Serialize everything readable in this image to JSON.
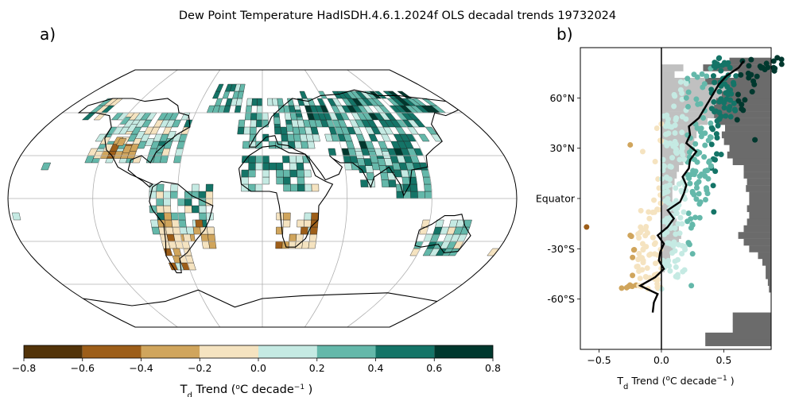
{
  "chart_data": [
    {
      "type": "heatmap",
      "panel": "a)",
      "title_parts": [
        "Dew Point Temperature HadISDH.4.6.1.2024f OLS decadal trends 19732024"
      ],
      "colorbar": {
        "label_main": "T",
        "label_sub": "d",
        "label_mid": " Trend (",
        "label_sup1": "o",
        "label_unit": "C decade",
        "label_sup2": "−1",
        "label_end": " )",
        "bounds": [
          -0.8,
          -0.6,
          -0.4,
          -0.2,
          0.0,
          0.2,
          0.4,
          0.6,
          0.8
        ],
        "tick_labels": [
          "−0.8",
          "−0.6",
          "−0.4",
          "−0.2",
          "0.0",
          "0.2",
          "0.4",
          "0.6",
          "0.8"
        ],
        "colors": [
          "#523309",
          "#9d5e19",
          "#d0a55c",
          "#f5e3c0",
          "#c5eae3",
          "#64b8aa",
          "#147467",
          "#00382e"
        ]
      },
      "grid_cells_sample": [
        {
          "lon": -120,
          "lat": 52,
          "trend": 0.3
        },
        {
          "lon": -110,
          "lat": 47,
          "trend": 0.1
        },
        {
          "lon": -100,
          "lat": 42,
          "trend": 0.05
        },
        {
          "lon": -112,
          "lat": 37,
          "trend": -0.3
        },
        {
          "lon": -105,
          "lat": 32,
          "trend": -0.4
        },
        {
          "lon": -90,
          "lat": 37,
          "trend": 0.1
        },
        {
          "lon": -80,
          "lat": 32,
          "trend": 0.3
        },
        {
          "lon": -75,
          "lat": 42,
          "trend": 0.1
        },
        {
          "lon": -60,
          "lat": -5,
          "trend": 0.3
        },
        {
          "lon": -45,
          "lat": -10,
          "trend": 0.1
        },
        {
          "lon": -48,
          "lat": -20,
          "trend": -0.5
        },
        {
          "lon": -58,
          "lat": -30,
          "trend": -0.1
        },
        {
          "lon": -68,
          "lat": -40,
          "trend": -0.3
        },
        {
          "lon": -70,
          "lat": -15,
          "trend": -0.3
        },
        {
          "lon": 10,
          "lat": 52,
          "trend": 0.3
        },
        {
          "lon": 20,
          "lat": 47,
          "trend": 0.3
        },
        {
          "lon": 30,
          "lat": 57,
          "trend": 0.5
        },
        {
          "lon": 40,
          "lat": 50,
          "trend": 0.3
        },
        {
          "lon": 60,
          "lat": 55,
          "trend": 0.1
        },
        {
          "lon": 80,
          "lat": 50,
          "trend": 0.3
        },
        {
          "lon": 100,
          "lat": 55,
          "trend": 0.5
        },
        {
          "lon": 120,
          "lat": 45,
          "trend": 0.1
        },
        {
          "lon": 110,
          "lat": 30,
          "trend": 0.3
        },
        {
          "lon": 80,
          "lat": 25,
          "trend": 0.3
        },
        {
          "lon": 50,
          "lat": 30,
          "trend": 0.5
        },
        {
          "lon": 30,
          "lat": 25,
          "trend": 0.3
        },
        {
          "lon": 10,
          "lat": 15,
          "trend": 0.3
        },
        {
          "lon": 35,
          "lat": 5,
          "trend": -0.1
        },
        {
          "lon": 28,
          "lat": -25,
          "trend": -0.5
        },
        {
          "lon": 20,
          "lat": -30,
          "trend": -0.3
        },
        {
          "lon": 120,
          "lat": -30,
          "trend": 0.1
        },
        {
          "lon": 140,
          "lat": -25,
          "trend": 0.3
        },
        {
          "lon": 145,
          "lat": -35,
          "trend": -0.1
        },
        {
          "lon": 175,
          "lat": -40,
          "trend": -0.1
        },
        {
          "lon": -160,
          "lat": 20,
          "trend": 0.3
        },
        {
          "lon": -178,
          "lat": -15,
          "trend": 0.1
        }
      ]
    },
    {
      "type": "scatter",
      "panel": "b)",
      "ytick_labels": [
        "60",
        "N",
        "30",
        "N",
        "Equator",
        "-30",
        "S",
        "-60",
        "S"
      ],
      "ytick_display": [
        "60°N",
        "30°N",
        "Equator",
        "-30°S",
        "-60°S"
      ],
      "ytick_values": [
        60,
        30,
        0,
        -30,
        -60
      ],
      "ylim": [
        -90,
        90
      ],
      "xlim": [
        -0.65,
        0.88
      ],
      "xticks": [
        -0.5,
        0.0,
        0.5
      ],
      "xtick_labels": [
        "−0.5",
        "0.0",
        "0.5"
      ],
      "xlabel_main": "T",
      "xlabel_sub": "d",
      "xlabel_mid": " Trend (",
      "xlabel_sup1": "o",
      "xlabel_unit": "C decade",
      "xlabel_sup2": "−1",
      "xlabel_end": " )",
      "land_fraction_dark": [
        {
          "lat": 82,
          "frac": 0.38
        },
        {
          "lat": 78,
          "frac": 0.62
        },
        {
          "lat": 74,
          "frac": 0.3
        },
        {
          "lat": 70,
          "frac": 0.72
        },
        {
          "lat": 66,
          "frac": 0.82
        },
        {
          "lat": 62,
          "frac": 0.85
        },
        {
          "lat": 58,
          "frac": 0.6
        },
        {
          "lat": 54,
          "frac": 0.55
        },
        {
          "lat": 50,
          "frac": 0.55
        },
        {
          "lat": 46,
          "frac": 0.48
        },
        {
          "lat": 42,
          "frac": 0.42
        },
        {
          "lat": 38,
          "frac": 0.45
        },
        {
          "lat": 34,
          "frac": 0.43
        },
        {
          "lat": 30,
          "frac": 0.38
        },
        {
          "lat": 26,
          "frac": 0.4
        },
        {
          "lat": 22,
          "frac": 0.35
        },
        {
          "lat": 18,
          "frac": 0.25
        },
        {
          "lat": 14,
          "frac": 0.25
        },
        {
          "lat": 10,
          "frac": 0.22
        },
        {
          "lat": 6,
          "frac": 0.23
        },
        {
          "lat": 2,
          "frac": 0.2
        },
        {
          "lat": -2,
          "frac": 0.2
        },
        {
          "lat": -6,
          "frac": 0.22
        },
        {
          "lat": -10,
          "frac": 0.2
        },
        {
          "lat": -14,
          "frac": 0.22
        },
        {
          "lat": -18,
          "frac": 0.25
        },
        {
          "lat": -22,
          "frac": 0.3
        },
        {
          "lat": -26,
          "frac": 0.25
        },
        {
          "lat": -30,
          "frac": 0.2
        },
        {
          "lat": -34,
          "frac": 0.12
        },
        {
          "lat": -38,
          "frac": 0.08
        },
        {
          "lat": -42,
          "frac": 0.05
        },
        {
          "lat": -46,
          "frac": 0.05
        },
        {
          "lat": -50,
          "frac": 0.03
        },
        {
          "lat": -54,
          "frac": 0.02
        },
        {
          "lat": -62,
          "frac": 0.0
        },
        {
          "lat": -66,
          "frac": 0.0
        },
        {
          "lat": -70,
          "frac": 0.35
        },
        {
          "lat": -74,
          "frac": 0.35
        },
        {
          "lat": -78,
          "frac": 0.35
        },
        {
          "lat": -82,
          "frac": 0.6
        },
        {
          "lat": -86,
          "frac": 0.6
        }
      ],
      "coverage_fraction_light": [
        {
          "lat": 78,
          "frac": 0.2
        },
        {
          "lat": 74,
          "frac": 0.12
        },
        {
          "lat": 70,
          "frac": 0.4
        },
        {
          "lat": 66,
          "frac": 0.6
        },
        {
          "lat": 62,
          "frac": 0.55
        },
        {
          "lat": 58,
          "frac": 0.5
        },
        {
          "lat": 54,
          "frac": 0.48
        },
        {
          "lat": 50,
          "frac": 0.48
        },
        {
          "lat": 46,
          "frac": 0.42
        },
        {
          "lat": 42,
          "frac": 0.35
        },
        {
          "lat": 38,
          "frac": 0.32
        },
        {
          "lat": 34,
          "frac": 0.3
        },
        {
          "lat": 30,
          "frac": 0.28
        },
        {
          "lat": 26,
          "frac": 0.24
        },
        {
          "lat": 22,
          "frac": 0.2
        },
        {
          "lat": 18,
          "frac": 0.16
        },
        {
          "lat": 14,
          "frac": 0.14
        },
        {
          "lat": 10,
          "frac": 0.12
        },
        {
          "lat": 6,
          "frac": 0.1
        },
        {
          "lat": 2,
          "frac": 0.1
        },
        {
          "lat": -2,
          "frac": 0.1
        },
        {
          "lat": -6,
          "frac": 0.12
        },
        {
          "lat": -10,
          "frac": 0.12
        },
        {
          "lat": -14,
          "frac": 0.14
        },
        {
          "lat": -18,
          "frac": 0.16
        },
        {
          "lat": -22,
          "frac": 0.18
        },
        {
          "lat": -26,
          "frac": 0.16
        },
        {
          "lat": -30,
          "frac": 0.12
        },
        {
          "lat": -34,
          "frac": 0.08
        },
        {
          "lat": -38,
          "frac": 0.05
        },
        {
          "lat": -42,
          "frac": 0.03
        }
      ],
      "zonal_mean_line": [
        {
          "lat": -68,
          "trend": -0.07
        },
        {
          "lat": -62,
          "trend": -0.06
        },
        {
          "lat": -57,
          "trend": -0.03
        },
        {
          "lat": -52,
          "trend": -0.17
        },
        {
          "lat": -47,
          "trend": -0.05
        },
        {
          "lat": -42,
          "trend": 0.02
        },
        {
          "lat": -37,
          "trend": -0.02
        },
        {
          "lat": -32,
          "trend": -0.01
        },
        {
          "lat": -27,
          "trend": 0.02
        },
        {
          "lat": -22,
          "trend": -0.03
        },
        {
          "lat": -17,
          "trend": 0.05
        },
        {
          "lat": -12,
          "trend": 0.1
        },
        {
          "lat": -7,
          "trend": 0.05
        },
        {
          "lat": -2,
          "trend": 0.15
        },
        {
          "lat": 3,
          "trend": 0.18
        },
        {
          "lat": 8,
          "trend": 0.2
        },
        {
          "lat": 13,
          "trend": 0.17
        },
        {
          "lat": 18,
          "trend": 0.22
        },
        {
          "lat": 23,
          "trend": 0.23
        },
        {
          "lat": 28,
          "trend": 0.28
        },
        {
          "lat": 33,
          "trend": 0.2
        },
        {
          "lat": 38,
          "trend": 0.23
        },
        {
          "lat": 43,
          "trend": 0.22
        },
        {
          "lat": 48,
          "trend": 0.3
        },
        {
          "lat": 53,
          "trend": 0.34
        },
        {
          "lat": 58,
          "trend": 0.38
        },
        {
          "lat": 63,
          "trend": 0.42
        },
        {
          "lat": 68,
          "trend": 0.46
        },
        {
          "lat": 73,
          "trend": 0.52
        },
        {
          "lat": 78,
          "trend": 0.62
        },
        {
          "lat": 82,
          "trend": 0.66
        }
      ],
      "points_sample": [
        {
          "lat": 82,
          "trend": 0.65
        },
        {
          "lat": 78,
          "trend": 0.8
        },
        {
          "lat": 78,
          "trend": 0.55
        },
        {
          "lat": 72,
          "trend": 0.7
        },
        {
          "lat": 68,
          "trend": 0.58
        },
        {
          "lat": 65,
          "trend": 0.4
        },
        {
          "lat": 60,
          "trend": 0.2
        },
        {
          "lat": 55,
          "trend": 0.1
        },
        {
          "lat": 45,
          "trend": 0.05
        },
        {
          "lat": 35,
          "trend": 0.75
        },
        {
          "lat": 32,
          "trend": -0.25
        },
        {
          "lat": 28,
          "trend": -0.15
        },
        {
          "lat": 22,
          "trend": -0.05
        },
        {
          "lat": 10,
          "trend": 0.3
        },
        {
          "lat": -8,
          "trend": 0.42
        },
        {
          "lat": -17,
          "trend": -0.6
        },
        {
          "lat": -22,
          "trend": -0.25
        },
        {
          "lat": -27,
          "trend": -0.15
        },
        {
          "lat": -33,
          "trend": 0.25
        },
        {
          "lat": -38,
          "trend": 0.05
        },
        {
          "lat": -52,
          "trend": -0.18
        },
        {
          "lat": -52,
          "trend": 0.24
        }
      ]
    }
  ]
}
